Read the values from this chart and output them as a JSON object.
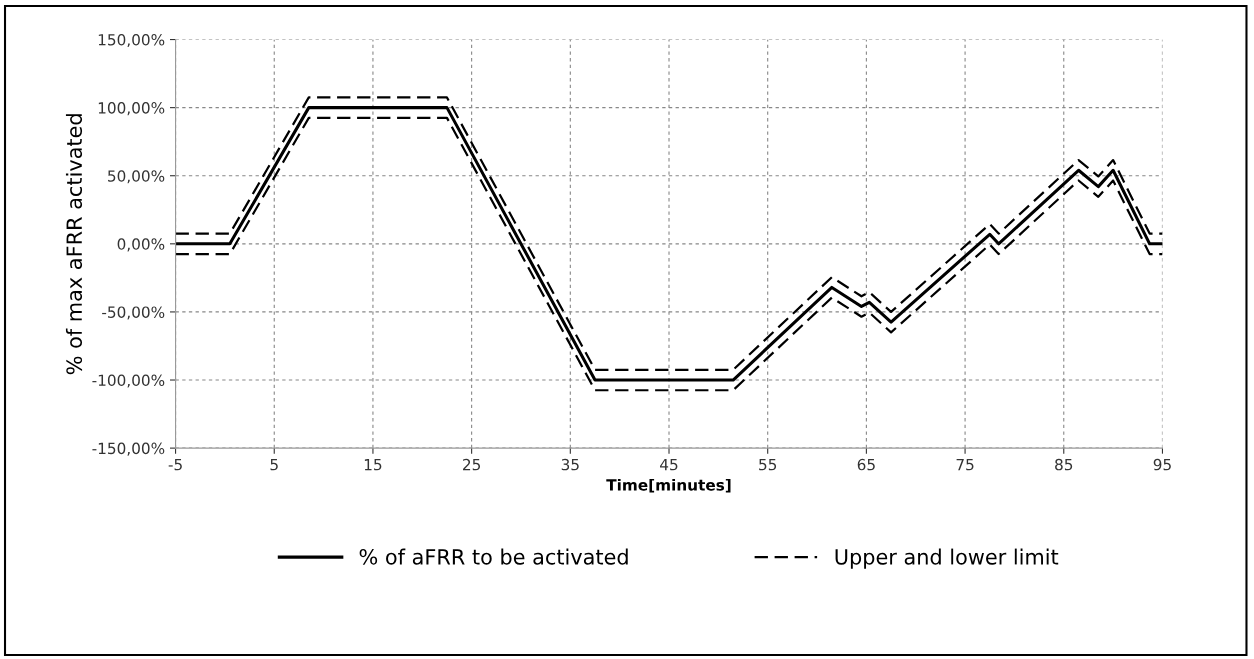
{
  "chart_data": {
    "type": "line",
    "xlabel": "Time[minutes]",
    "ylabel": "% of max aFRR activated",
    "xlim": [
      -5,
      95
    ],
    "xticks": [
      -5,
      5,
      15,
      25,
      35,
      45,
      55,
      65,
      75,
      85,
      95
    ],
    "ylim": [
      -150,
      150
    ],
    "yticks": [
      {
        "value": -150,
        "label": "-150,00%"
      },
      {
        "value": -100,
        "label": "-100,00%"
      },
      {
        "value": -50,
        "label": "-50,00%"
      },
      {
        "value": 0,
        "label": "0,00%"
      },
      {
        "value": 50,
        "label": "50,00%"
      },
      {
        "value": 100,
        "label": "100,00%"
      },
      {
        "value": 150,
        "label": "150,00%"
      }
    ],
    "grid": true,
    "legend": "bottom",
    "marker": "none",
    "x": [
      -5,
      0.5,
      8.5,
      22.5,
      37.5,
      51.5,
      61.5,
      64.5,
      65.3,
      67.5,
      77.5,
      78.4,
      86.5,
      88.5,
      90,
      93.7,
      95
    ],
    "series": [
      {
        "name": "% of aFRR to be activated",
        "color": "#000000",
        "line_style": "solid",
        "values": [
          0,
          0,
          100,
          100,
          -100,
          -100,
          -32,
          -46,
          -43,
          -57.5,
          7,
          0,
          54,
          42,
          54,
          0,
          0
        ]
      },
      {
        "name": "Upper and lower limit",
        "color": "#000000",
        "line_style": "dashed",
        "values": [
          7.5,
          7.5,
          107.5,
          107.5,
          -92.5,
          -92.5,
          -24.5,
          -38.5,
          -35.5,
          -50,
          14.5,
          7.5,
          61.5,
          49.5,
          61.5,
          7.5,
          7.5
        ]
      },
      {
        "color": "#000000",
        "line_style": "dashed",
        "values": [
          -7.5,
          -7.5,
          92.5,
          92.5,
          -107.5,
          -107.5,
          -39.5,
          -53.5,
          -50.5,
          -65,
          -0.5,
          -7.5,
          46.5,
          34.5,
          46.5,
          -7.5,
          -7.5
        ]
      }
    ]
  }
}
